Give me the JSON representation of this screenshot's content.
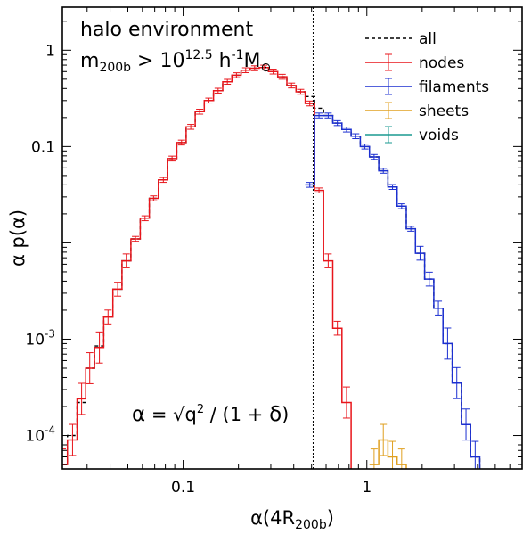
{
  "chart_data": {
    "type": "line",
    "xscale": "log",
    "yscale": "log",
    "xlim": [
      0.022,
      7.0
    ],
    "ylim": [
      4.5e-05,
      2.8
    ],
    "xlabel": "α(4R",
    "xlabel_sub": "200b",
    "xlabel_tail": ")",
    "ylabel": "α p(α)",
    "x_ticks": [
      {
        "value": 0.1,
        "label": "0.1"
      },
      {
        "value": 1,
        "label": "1"
      }
    ],
    "y_ticks": [
      {
        "value": 1,
        "base": "1",
        "exp": ""
      },
      {
        "value": 0.1,
        "base": "0.1",
        "exp": ""
      },
      {
        "value": 0.001,
        "base": "10",
        "exp": "-3"
      },
      {
        "value": 0.0001,
        "base": "10",
        "exp": "-4"
      }
    ],
    "annotation": {
      "line1": "halo environment",
      "m": "m",
      "m_sub": "200b",
      "gt": " > 10",
      "exp": "12.5",
      "h": " h",
      "h_exp": "-1",
      "M": "M",
      "sun": "⊙"
    },
    "formula": {
      "alpha": "α",
      "eq": " = √q",
      "sq": "2",
      "rest": " / (1 + ",
      "delta": "δ",
      "close": ")"
    },
    "vline_x": 0.51,
    "legend": [
      {
        "label": "all",
        "color": "#000000",
        "style": "dashed"
      },
      {
        "label": "nodes",
        "color": "#e8151b",
        "style": "solid"
      },
      {
        "label": "filaments",
        "color": "#1b2fd1",
        "style": "solid"
      },
      {
        "label": "sheets",
        "color": "#e0a020",
        "style": "solid"
      },
      {
        "label": "voids",
        "color": "#1a9a90",
        "style": "solid"
      }
    ],
    "series": [
      {
        "name": "all",
        "color": "#000000",
        "style": "dashed",
        "x": [
          0.022,
          0.025,
          0.028,
          0.031,
          0.035,
          0.039,
          0.044,
          0.049,
          0.055,
          0.062,
          0.069,
          0.078,
          0.087,
          0.098,
          0.11,
          0.123,
          0.138,
          0.155,
          0.174,
          0.195,
          0.219,
          0.245,
          0.275,
          0.309,
          0.346,
          0.389,
          0.436,
          0.489,
          0.549,
          0.616,
          0.691,
          0.775,
          0.87,
          0.976,
          1.095,
          1.229,
          1.379,
          1.547,
          1.736,
          1.948,
          2.186,
          2.452,
          2.752,
          3.088,
          3.465,
          3.887,
          4.361,
          4.893
        ],
        "y": [
          5e-05,
          0.0001,
          0.00022,
          0.0005,
          0.00085,
          0.0017,
          0.0033,
          0.0065,
          0.011,
          0.018,
          0.029,
          0.045,
          0.075,
          0.11,
          0.16,
          0.23,
          0.3,
          0.38,
          0.47,
          0.55,
          0.62,
          0.65,
          0.66,
          0.6,
          0.53,
          0.43,
          0.37,
          0.33,
          0.25,
          0.21,
          0.175,
          0.15,
          0.128,
          0.1,
          0.078,
          0.056,
          0.038,
          0.024,
          0.014,
          0.0078,
          0.0042,
          0.0021,
          0.0009,
          0.00035,
          0.00013,
          6e-05,
          4e-05,
          3e-05
        ]
      },
      {
        "name": "nodes",
        "color": "#e8151b",
        "style": "solid",
        "x": [
          0.022,
          0.025,
          0.028,
          0.031,
          0.035,
          0.039,
          0.044,
          0.049,
          0.055,
          0.062,
          0.069,
          0.078,
          0.087,
          0.098,
          0.11,
          0.123,
          0.138,
          0.155,
          0.174,
          0.195,
          0.219,
          0.245,
          0.275,
          0.309,
          0.346,
          0.389,
          0.436,
          0.489,
          0.549,
          0.616,
          0.691,
          0.775,
          0.87
        ],
        "y": [
          5e-05,
          9e-05,
          0.00024,
          0.0005,
          0.00082,
          0.0017,
          0.0033,
          0.0065,
          0.011,
          0.018,
          0.029,
          0.045,
          0.075,
          0.11,
          0.16,
          0.23,
          0.3,
          0.38,
          0.47,
          0.55,
          0.62,
          0.65,
          0.66,
          0.6,
          0.53,
          0.43,
          0.37,
          0.28,
          0.035,
          0.0065,
          0.0013,
          0.00022,
          3e-05
        ]
      },
      {
        "name": "filaments",
        "color": "#1b2fd1",
        "style": "solid",
        "x": [
          0.489,
          0.549,
          0.616,
          0.691,
          0.775,
          0.87,
          0.976,
          1.095,
          1.229,
          1.379,
          1.547,
          1.736,
          1.948,
          2.186,
          2.452,
          2.752,
          3.088,
          3.465,
          3.887,
          4.361,
          4.893
        ],
        "y": [
          0.04,
          0.21,
          0.21,
          0.175,
          0.15,
          0.128,
          0.1,
          0.078,
          0.056,
          0.038,
          0.024,
          0.014,
          0.0078,
          0.0042,
          0.0021,
          0.0009,
          0.00035,
          0.00013,
          6e-05,
          4e-05,
          3e-05
        ]
      },
      {
        "name": "sheets",
        "color": "#e0a020",
        "style": "solid",
        "x": [
          1.095,
          1.229,
          1.379,
          1.547,
          1.736
        ],
        "y": [
          5e-05,
          9e-05,
          6e-05,
          5e-05,
          3e-05
        ]
      },
      {
        "name": "voids",
        "color": "#1a9a90",
        "style": "solid",
        "x": [],
        "y": []
      }
    ]
  }
}
